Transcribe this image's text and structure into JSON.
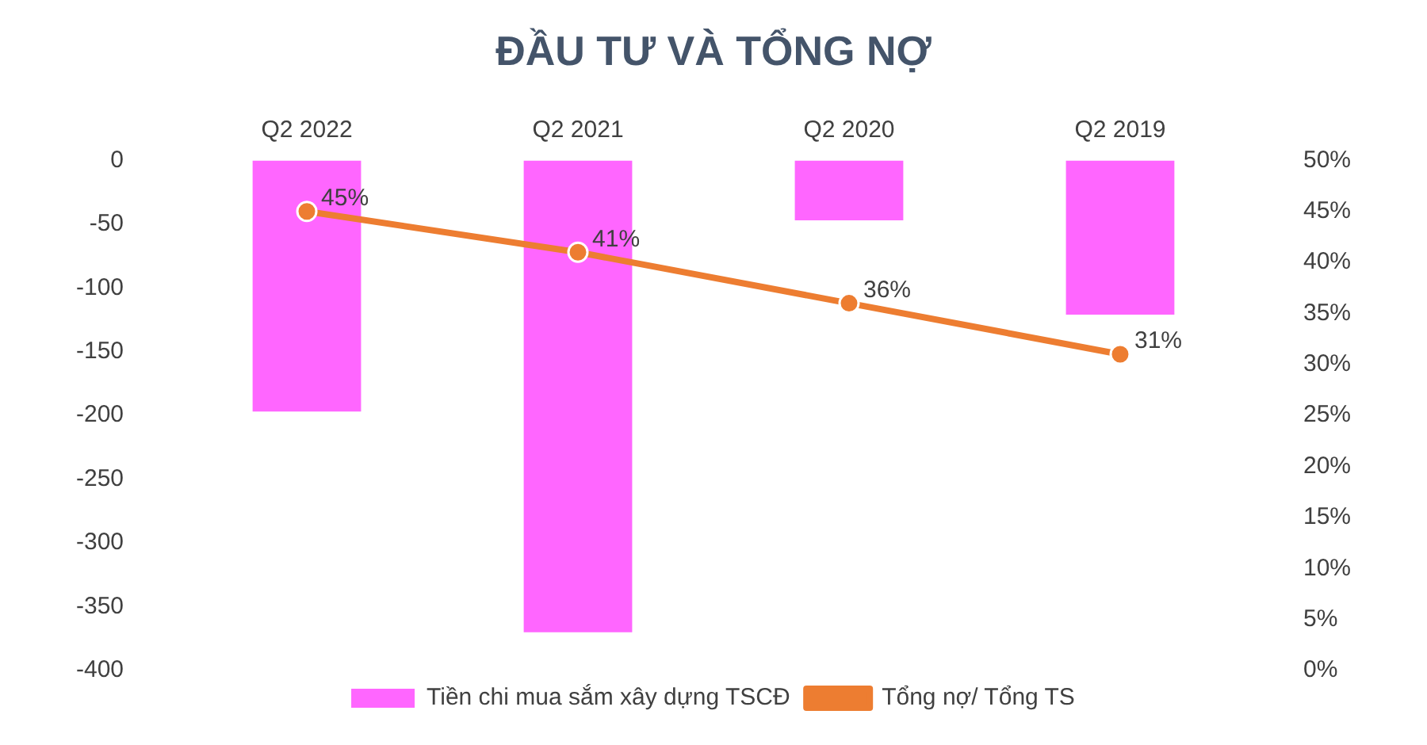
{
  "chart_data": {
    "type": "bar",
    "title": "ĐẦU TƯ VÀ TỔNG NỢ",
    "categories": [
      "Q2 2022",
      "Q2 2021",
      "Q2 2020",
      "Q2 2019"
    ],
    "series": [
      {
        "name": "Tiền chi mua sắm xây dựng TSCĐ",
        "color": "#ff66ff",
        "values": [
          -197,
          -370,
          -47,
          -121
        ]
      },
      {
        "name": "Tổng nợ/ Tổng TS",
        "type": "line",
        "axis": "y2",
        "color": "#ed7d31",
        "values": [
          45,
          41,
          36,
          31
        ],
        "value_labels": [
          "45%",
          "41%",
          "36%",
          "31%"
        ]
      }
    ],
    "ylim": [
      -400,
      0
    ],
    "yticks": [
      -400,
      -350,
      -300,
      -250,
      -200,
      -150,
      -100,
      -50,
      0
    ],
    "y2lim": [
      0,
      50
    ],
    "y2ticks": [
      {
        "value": 0,
        "label": "0%"
      },
      {
        "value": 5,
        "label": "5%"
      },
      {
        "value": 10,
        "label": "10%"
      },
      {
        "value": 15,
        "label": "15%"
      },
      {
        "value": 20,
        "label": "20%"
      },
      {
        "value": 25,
        "label": "25%"
      },
      {
        "value": 30,
        "label": "30%"
      },
      {
        "value": 35,
        "label": "35%"
      },
      {
        "value": 40,
        "label": "40%"
      },
      {
        "value": 45,
        "label": "45%"
      },
      {
        "value": 50,
        "label": "50%"
      }
    ],
    "grid": false,
    "legend": "bottom",
    "marker": "circle",
    "line_style": "solid"
  }
}
